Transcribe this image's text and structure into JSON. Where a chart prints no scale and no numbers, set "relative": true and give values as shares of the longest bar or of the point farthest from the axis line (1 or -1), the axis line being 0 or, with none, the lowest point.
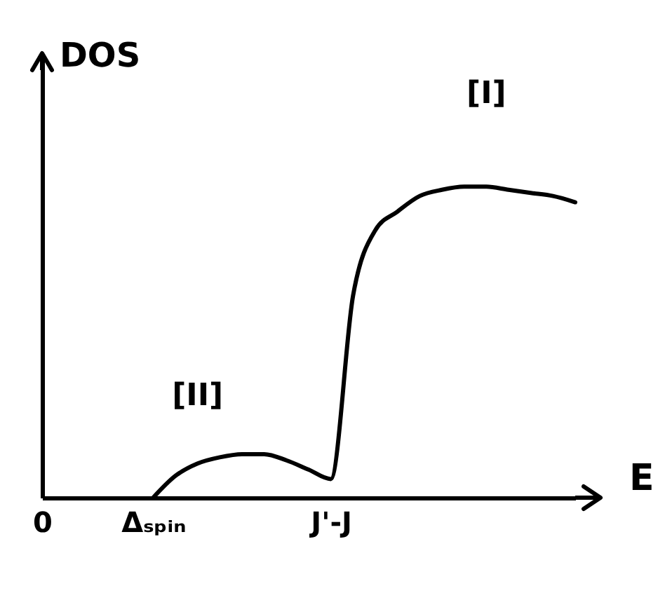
{
  "chart_data": {
    "type": "line",
    "relative": true,
    "xlabel": "E",
    "ylabel": "DOS",
    "categories": [
      "0",
      null,
      null,
      null,
      null,
      "Δₛₚᵢₙ",
      null,
      null,
      null,
      null,
      null,
      null,
      null,
      "J'-J",
      null,
      null,
      null,
      null,
      null,
      null,
      null,
      null,
      null,
      null,
      null
    ],
    "series": [
      {
        "color": "#000000",
        "values": [
          null,
          null,
          null,
          null,
          null,
          0,
          0.07,
          0.11,
          0.13,
          0.14,
          0.14,
          0.12,
          0.09,
          0.06,
          0.65,
          0.86,
          0.92,
          0.97,
          0.99,
          1.0,
          1.0,
          0.99,
          0.98,
          0.97,
          0.95
        ]
      }
    ],
    "annotations": [
      "[I]",
      "[II]"
    ],
    "grid": false,
    "marker": "none",
    "line_style": "solid"
  }
}
